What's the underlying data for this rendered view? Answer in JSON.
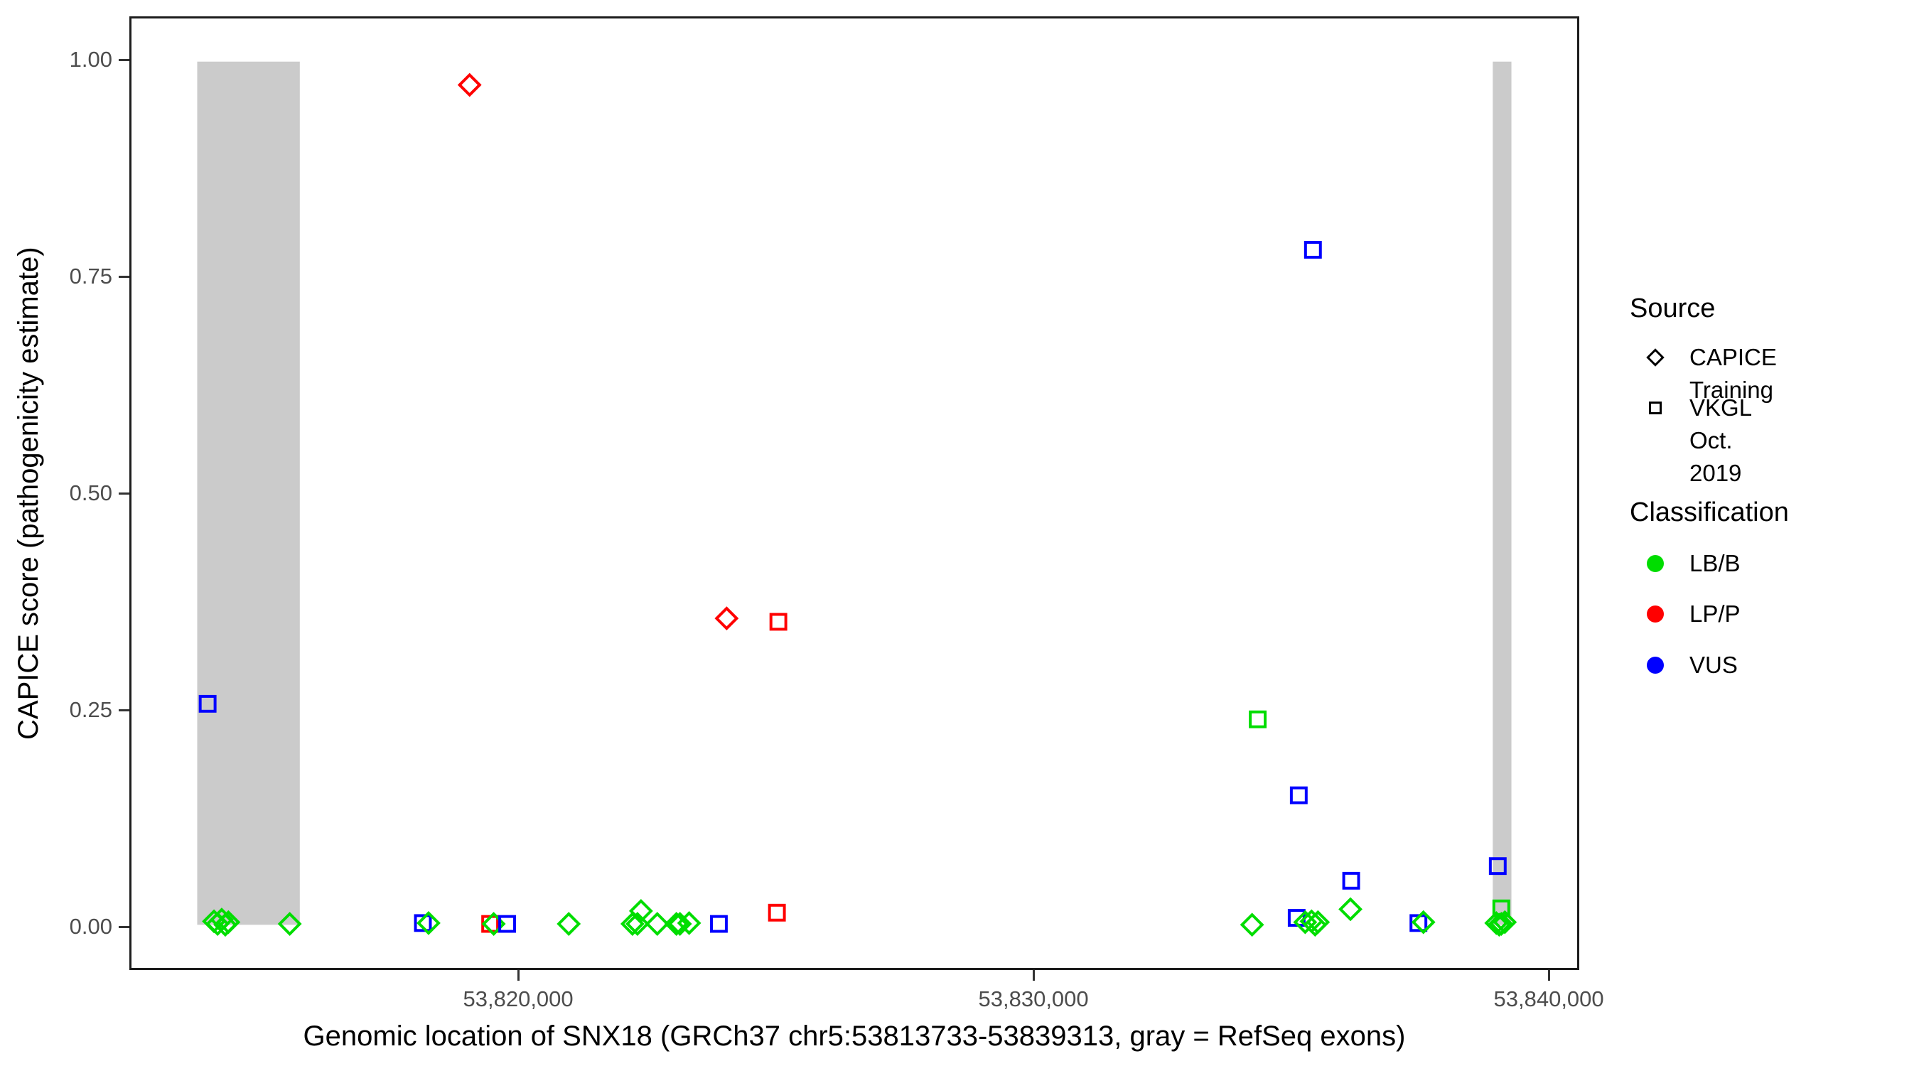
{
  "chart_data": {
    "type": "scatter",
    "xlabel": "Genomic location of SNX18 (GRCh37 chr5:53813733-53839313, gray = RefSeq exons)",
    "ylabel": "CAPICE score (pathogenicity estimate)",
    "x_axis": {
      "min": 53812454,
      "max": 53840592,
      "ticks": [
        {
          "value": 53820000,
          "label": "53,820,000"
        },
        {
          "value": 53830000,
          "label": "53,830,000"
        },
        {
          "value": 53840000,
          "label": "53,840,000"
        }
      ]
    },
    "y_axis": {
      "min": -0.05,
      "max": 1.05,
      "ticks": [
        {
          "value": 0.0,
          "label": "0.00"
        },
        {
          "value": 0.25,
          "label": "0.25"
        },
        {
          "value": 0.5,
          "label": "0.50"
        },
        {
          "value": 0.75,
          "label": "0.75"
        },
        {
          "value": 1.0,
          "label": "1.00"
        }
      ]
    },
    "exons": [
      {
        "start": 53813733,
        "end": 53815730
      },
      {
        "start": 53838950,
        "end": 53839313
      }
    ],
    "exon_color": "#cbcbcb",
    "exon_y_range": [
      0.0,
      1.0
    ],
    "colors": {
      "LB/B": "#00dd00",
      "LP/P": "#ff0000",
      "VUS": "#0000ff"
    },
    "shapes": {
      "CAPICE Training": "diamond",
      "VKGL Oct. 2019": "square"
    },
    "points": [
      {
        "pos": 53819035,
        "score": 0.973,
        "source": "CAPICE Training",
        "classification": "LP/P"
      },
      {
        "pos": 53835450,
        "score": 0.782,
        "source": "VKGL Oct. 2019",
        "classification": "VUS"
      },
      {
        "pos": 53824038,
        "score": 0.355,
        "source": "CAPICE Training",
        "classification": "LP/P"
      },
      {
        "pos": 53825045,
        "score": 0.351,
        "source": "VKGL Oct. 2019",
        "classification": "LP/P"
      },
      {
        "pos": 53813936,
        "score": 0.256,
        "source": "VKGL Oct. 2019",
        "classification": "VUS"
      },
      {
        "pos": 53834375,
        "score": 0.238,
        "source": "VKGL Oct. 2019",
        "classification": "LB/B"
      },
      {
        "pos": 53835174,
        "score": 0.15,
        "source": "VKGL Oct. 2019",
        "classification": "VUS"
      },
      {
        "pos": 53839047,
        "score": 0.068,
        "source": "VKGL Oct. 2019",
        "classification": "VUS"
      },
      {
        "pos": 53836194,
        "score": 0.051,
        "source": "VKGL Oct. 2019",
        "classification": "VUS"
      },
      {
        "pos": 53814060,
        "score": 0.004,
        "source": "CAPICE Training",
        "classification": "LB/B"
      },
      {
        "pos": 53814130,
        "score": 0.001,
        "source": "CAPICE Training",
        "classification": "LB/B"
      },
      {
        "pos": 53814210,
        "score": 0.006,
        "source": "CAPICE Training",
        "classification": "LB/B"
      },
      {
        "pos": 53814280,
        "score": 0.0,
        "source": "CAPICE Training",
        "classification": "LB/B"
      },
      {
        "pos": 53814340,
        "score": 0.003,
        "source": "CAPICE Training",
        "classification": "LB/B"
      },
      {
        "pos": 53815534,
        "score": 0.001,
        "source": "CAPICE Training",
        "classification": "LB/B"
      },
      {
        "pos": 53818126,
        "score": 0.002,
        "source": "VKGL Oct. 2019",
        "classification": "VUS"
      },
      {
        "pos": 53818236,
        "score": 0.002,
        "source": "CAPICE Training",
        "classification": "LB/B"
      },
      {
        "pos": 53819435,
        "score": 0.001,
        "source": "VKGL Oct. 2019",
        "classification": "LP/P"
      },
      {
        "pos": 53819504,
        "score": 0.001,
        "source": "CAPICE Training",
        "classification": "LB/B"
      },
      {
        "pos": 53819766,
        "score": 0.001,
        "source": "VKGL Oct. 2019",
        "classification": "VUS"
      },
      {
        "pos": 53820965,
        "score": 0.001,
        "source": "CAPICE Training",
        "classification": "LB/B"
      },
      {
        "pos": 53822205,
        "score": 0.001,
        "source": "CAPICE Training",
        "classification": "LB/B"
      },
      {
        "pos": 53822302,
        "score": 0.001,
        "source": "CAPICE Training",
        "classification": "LB/B"
      },
      {
        "pos": 53822371,
        "score": 0.016,
        "source": "CAPICE Training",
        "classification": "LB/B"
      },
      {
        "pos": 53822688,
        "score": 0.001,
        "source": "CAPICE Training",
        "classification": "LB/B"
      },
      {
        "pos": 53823060,
        "score": 0.001,
        "source": "CAPICE Training",
        "classification": "LB/B"
      },
      {
        "pos": 53823129,
        "score": 0.001,
        "source": "CAPICE Training",
        "classification": "LB/B"
      },
      {
        "pos": 53823308,
        "score": 0.002,
        "source": "CAPICE Training",
        "classification": "LB/B"
      },
      {
        "pos": 53823887,
        "score": 0.001,
        "source": "VKGL Oct. 2019",
        "classification": "VUS"
      },
      {
        "pos": 53825017,
        "score": 0.014,
        "source": "VKGL Oct. 2019",
        "classification": "LP/P"
      },
      {
        "pos": 53834265,
        "score": 0.0,
        "source": "CAPICE Training",
        "classification": "LB/B"
      },
      {
        "pos": 53835133,
        "score": 0.008,
        "source": "VKGL Oct. 2019",
        "classification": "VUS"
      },
      {
        "pos": 53835299,
        "score": 0.003,
        "source": "CAPICE Training",
        "classification": "LB/B"
      },
      {
        "pos": 53835423,
        "score": 0.004,
        "source": "CAPICE Training",
        "classification": "LB/B"
      },
      {
        "pos": 53835492,
        "score": 0.0,
        "source": "CAPICE Training",
        "classification": "LB/B"
      },
      {
        "pos": 53835547,
        "score": 0.003,
        "source": "CAPICE Training",
        "classification": "LB/B"
      },
      {
        "pos": 53836180,
        "score": 0.018,
        "source": "CAPICE Training",
        "classification": "LB/B"
      },
      {
        "pos": 53837503,
        "score": 0.002,
        "source": "VKGL Oct. 2019",
        "classification": "VUS"
      },
      {
        "pos": 53837600,
        "score": 0.003,
        "source": "CAPICE Training",
        "classification": "LB/B"
      },
      {
        "pos": 53839116,
        "score": 0.019,
        "source": "VKGL Oct. 2019",
        "classification": "LB/B"
      },
      {
        "pos": 53839019,
        "score": 0.002,
        "source": "CAPICE Training",
        "classification": "LB/B"
      },
      {
        "pos": 53839116,
        "score": 0.001,
        "source": "CAPICE Training",
        "classification": "LB/B"
      },
      {
        "pos": 53839185,
        "score": 0.003,
        "source": "CAPICE Training",
        "classification": "LB/B"
      },
      {
        "pos": 53839075,
        "score": 0.0,
        "source": "CAPICE Training",
        "classification": "LB/B"
      }
    ]
  },
  "legend": {
    "source": {
      "title": "Source",
      "items": [
        {
          "label": "CAPICE Training",
          "shape": "diamond"
        },
        {
          "label": "VKGL Oct. 2019",
          "shape": "square"
        }
      ]
    },
    "classification": {
      "title": "Classification",
      "items": [
        {
          "label": "LB/B",
          "color": "#00dd00"
        },
        {
          "label": "LP/P",
          "color": "#ff0000"
        },
        {
          "label": "VUS",
          "color": "#0000ff"
        }
      ]
    }
  }
}
